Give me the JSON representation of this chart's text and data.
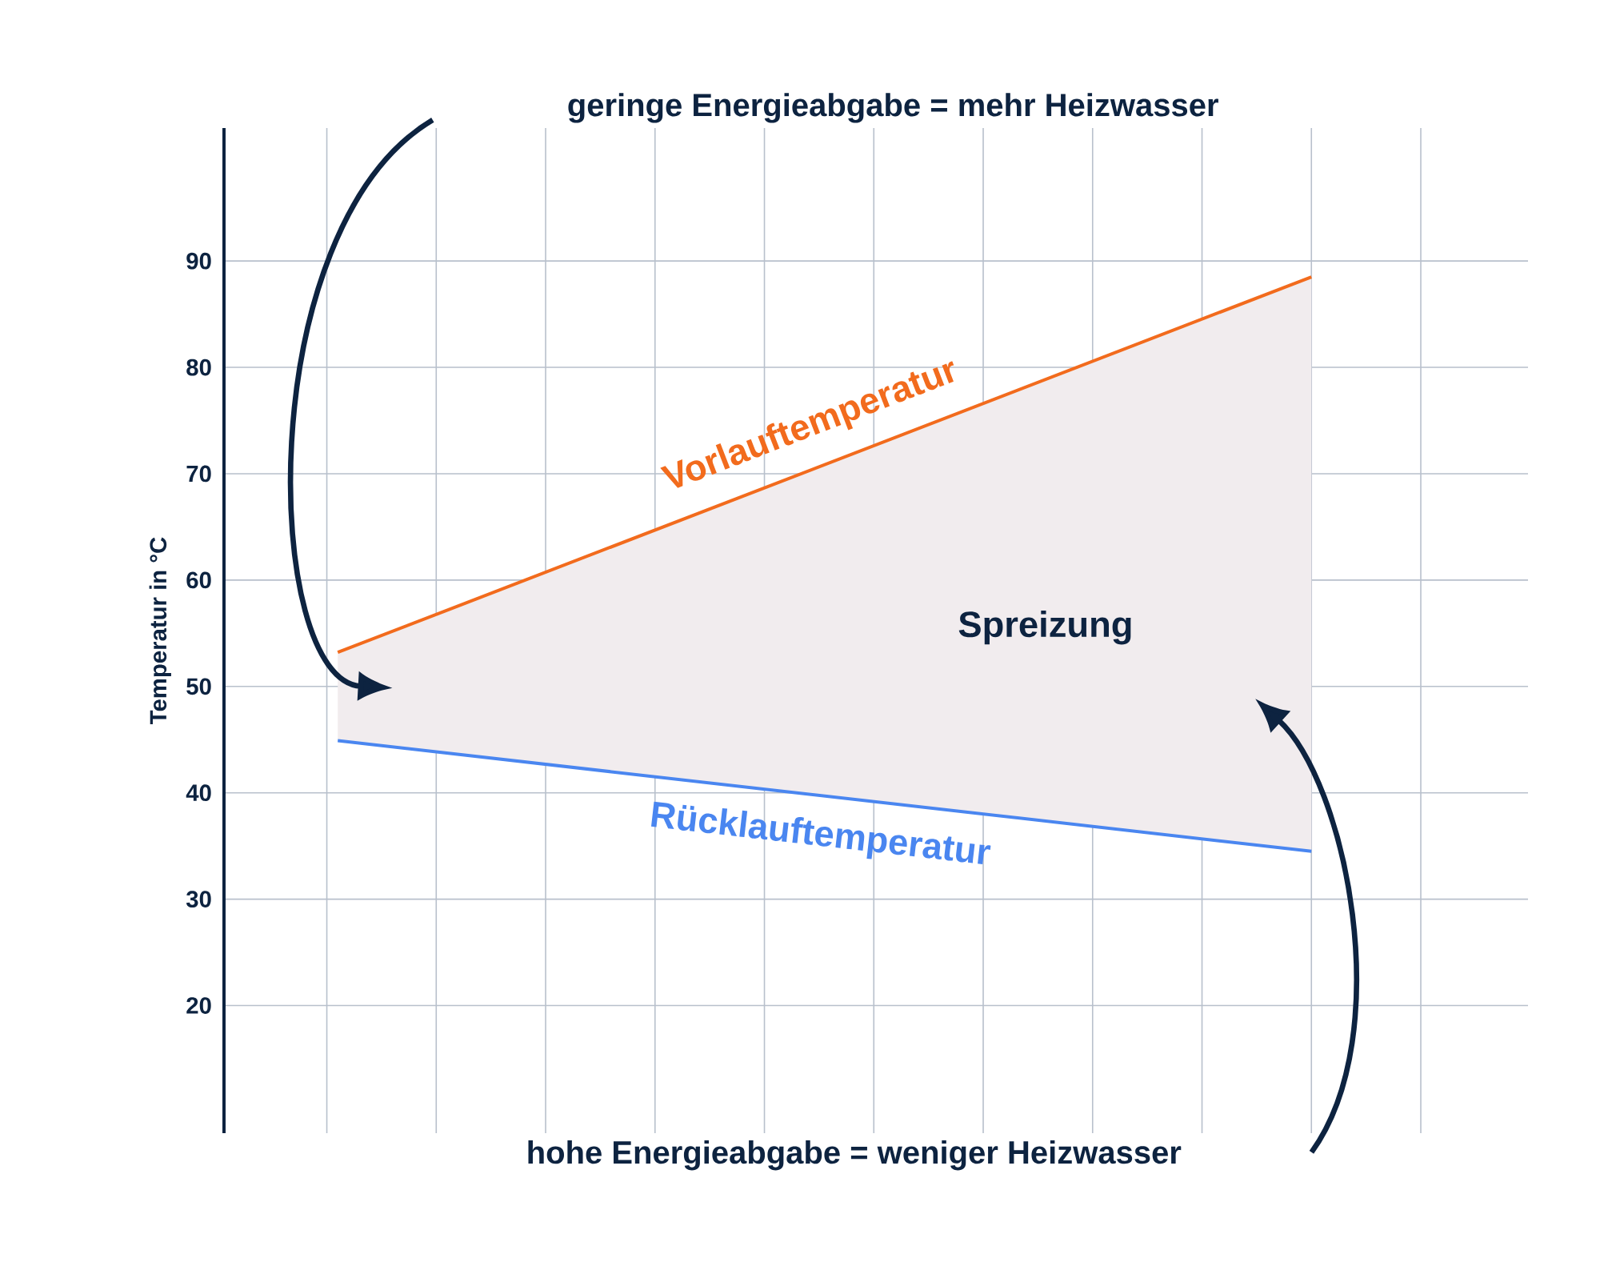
{
  "chart_data": {
    "type": "line",
    "ylabel": "Temperatur in °C",
    "categories": [
      null,
      null
    ],
    "ylim": [
      8,
      102.5
    ],
    "yticks": [
      20,
      30,
      40,
      50,
      60,
      70,
      80,
      90
    ],
    "tick_labels": "y",
    "grid": true,
    "series": [
      {
        "name": "Vorlauftemperatur",
        "color": "#f26b1d",
        "values": [
          53.2,
          88.5
        ],
        "lower": [
          44.9,
          34.5
        ],
        "upper": [
          53.2,
          88.5
        ]
      },
      {
        "name": "Rücklauftemperatur",
        "color": "#4a86f0",
        "values": [
          44.9,
          34.5
        ]
      }
    ],
    "annotations": [
      "Spreizung",
      "geringe Energieabgabe = mehr Heizwasser",
      "hohe Energieabgabe = weniger Heizwasser"
    ]
  }
}
